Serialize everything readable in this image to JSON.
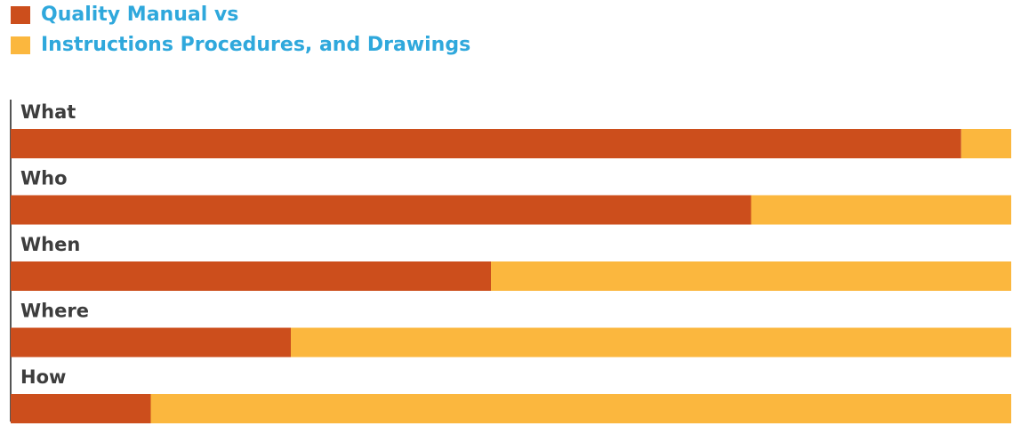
{
  "chart_data": {
    "type": "bar",
    "orientation": "horizontal",
    "stacked": true,
    "title": "",
    "xlabel": "",
    "ylabel": "",
    "xlim": [
      0,
      100
    ],
    "categories": [
      "What",
      "Who",
      "When",
      "Where",
      "How"
    ],
    "series": [
      {
        "name": "Quality Manual vs",
        "color": "#cc4e1c",
        "values": [
          95,
          74,
          48,
          28,
          14
        ]
      },
      {
        "name": "Instructions Procedures, and Drawings",
        "color": "#fbb73e",
        "values": [
          5,
          26,
          52,
          72,
          86
        ]
      }
    ],
    "legend": "top-left",
    "grid": false
  }
}
